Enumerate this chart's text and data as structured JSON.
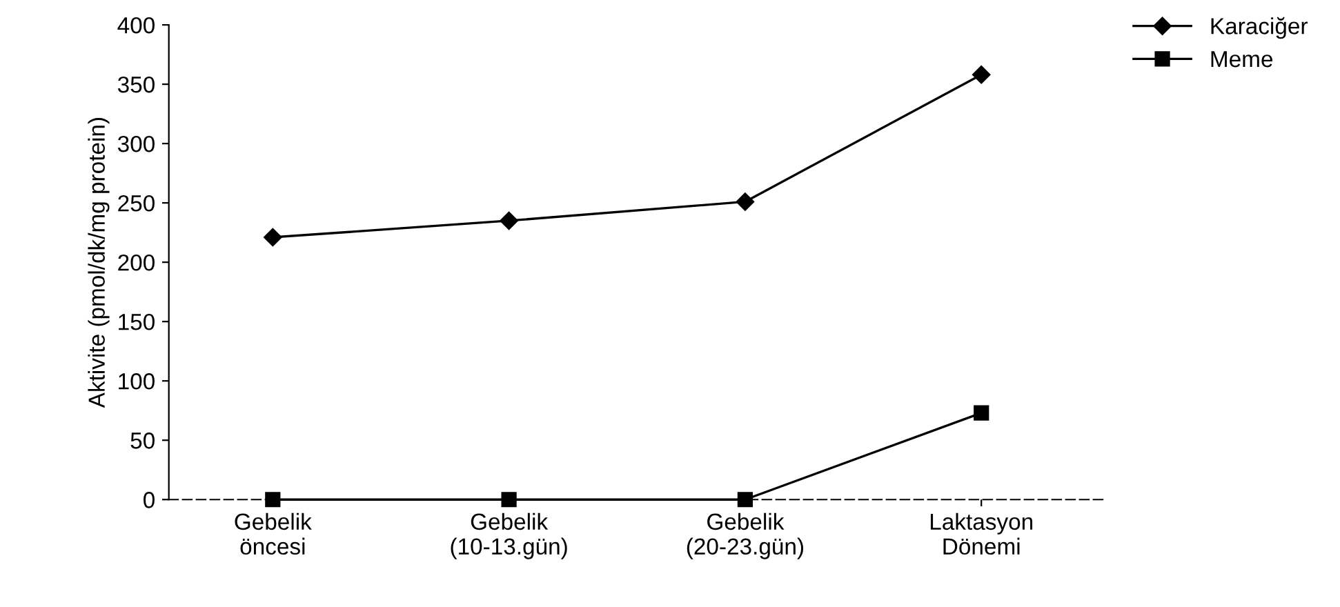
{
  "chart_data": {
    "type": "line",
    "ylabel": "Aktivite (pmol/dk/mg protein)",
    "categories": [
      "Gebelik\nöncesi",
      "Gebelik\n(10-13.gün)",
      "Gebelik\n(20-23.gün)",
      "Laktasyon\nDönemi"
    ],
    "series": [
      {
        "name": "Karaciğer",
        "color": "#000000",
        "marker": "diamond",
        "values": [
          221,
          235,
          251,
          358
        ]
      },
      {
        "name": "Meme",
        "color": "#000000",
        "marker": "square",
        "values": [
          0,
          0,
          0,
          73
        ]
      }
    ],
    "ylim": [
      0,
      400
    ],
    "yticks": [
      0,
      50,
      100,
      150,
      200,
      250,
      300,
      350,
      400
    ],
    "grid": false,
    "legend": "top right",
    "line_style": "solid"
  }
}
